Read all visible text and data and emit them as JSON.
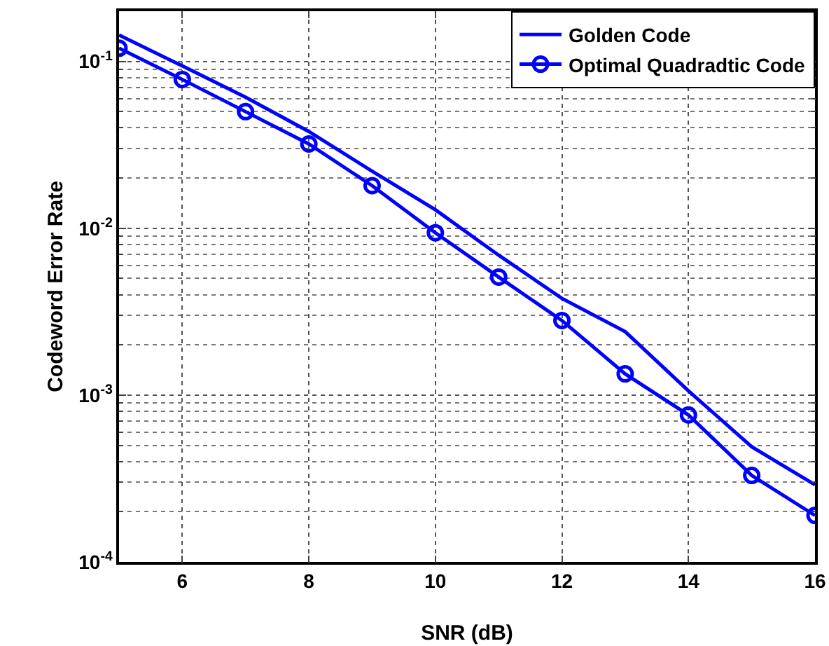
{
  "chart_data": {
    "type": "line",
    "xlabel": "SNR (dB)",
    "ylabel": "Codeword Error Rate",
    "x": [
      5,
      6,
      7,
      8,
      9,
      10,
      11,
      12,
      13,
      14,
      15,
      16
    ],
    "series": [
      {
        "name": "Golden Code",
        "color": "#0000ff",
        "marker": "none",
        "values": [
          0.144,
          0.094,
          0.061,
          0.038,
          0.022,
          0.0129,
          0.0069,
          0.0038,
          0.0024,
          0.00106,
          0.00049,
          0.00029
        ]
      },
      {
        "name": "Optimal Quadradtic Code",
        "color": "#0000ff",
        "marker": "circle",
        "values": [
          0.12,
          0.078,
          0.05,
          0.032,
          0.018,
          0.0094,
          0.0051,
          0.0028,
          0.00134,
          0.00076,
          0.00033,
          0.00019
        ]
      }
    ],
    "xlim": [
      5,
      16
    ],
    "xticks": [
      6,
      8,
      10,
      12,
      14,
      16
    ],
    "ylim": [
      0.0001,
      0.2
    ],
    "yticks": [
      {
        "value": 0.0001,
        "label": "10$^{-4}$"
      },
      {
        "value": 0.001,
        "label": "10$^{-3}$"
      },
      {
        "value": 0.01,
        "label": "10$^{-2}$"
      },
      {
        "value": 0.1,
        "label": "10$^{-1}$"
      }
    ],
    "log": "y",
    "grid": true,
    "legend": "top right",
    "line_style": "solid"
  }
}
